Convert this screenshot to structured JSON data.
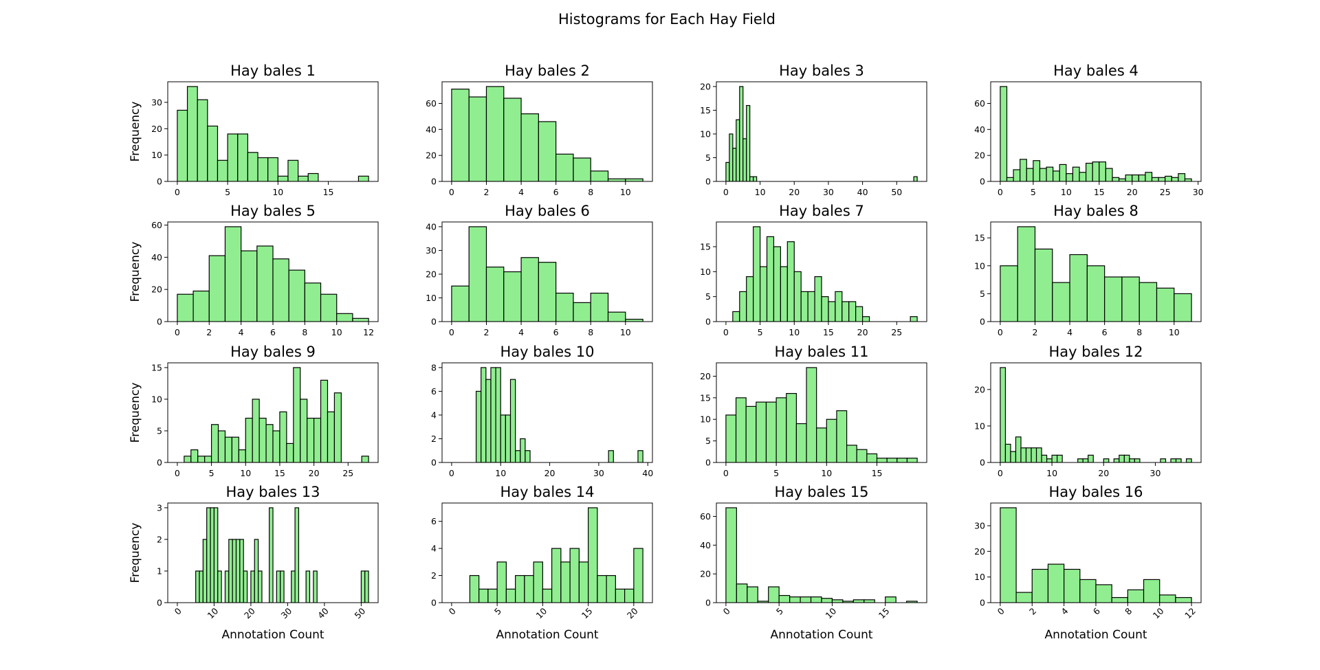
{
  "title": "Histograms for Each Hay Field",
  "chart_data": [
    {
      "type": "histogram",
      "title": "Hay bales 1",
      "ylabel": "Frequency",
      "color": "#90ee90",
      "edgecolor": "#000000",
      "bins": [
        0,
        1,
        2,
        3,
        4,
        5,
        6,
        7,
        8,
        9,
        10,
        11,
        12,
        13,
        14,
        15,
        16,
        17,
        18,
        19
      ],
      "values": [
        27,
        36,
        31,
        21,
        8,
        18,
        18,
        11,
        9,
        9,
        2,
        8,
        2,
        3,
        0,
        0,
        0,
        0,
        2
      ],
      "xlim": [
        -0.95,
        19.95
      ],
      "xticks": [
        0,
        5,
        10,
        15
      ],
      "ylim": [
        0,
        37.8
      ],
      "yticks": [
        0,
        10,
        20,
        30
      ]
    },
    {
      "type": "histogram",
      "title": "Hay bales 2",
      "color": "#90ee90",
      "edgecolor": "#000000",
      "bins": [
        0,
        1,
        2,
        3,
        4,
        5,
        6,
        7,
        8,
        9,
        10,
        11
      ],
      "values": [
        71,
        65,
        73,
        64,
        52,
        46,
        21,
        18,
        8,
        2,
        2
      ],
      "xlim": [
        -0.55,
        11.55
      ],
      "xticks": [
        0,
        2,
        4,
        6,
        8,
        10
      ],
      "ylim": [
        0,
        76.65
      ],
      "yticks": [
        0,
        20,
        40,
        60
      ]
    },
    {
      "type": "histogram",
      "title": "Hay bales 3",
      "color": "#90ee90",
      "edgecolor": "#000000",
      "bins": [
        0,
        1,
        2,
        3,
        4,
        5,
        6,
        7,
        8,
        9,
        10,
        11,
        12,
        13,
        14,
        15,
        16,
        17,
        18,
        19,
        20,
        21,
        22,
        23,
        24,
        25,
        26,
        27,
        28,
        29,
        30,
        31,
        32,
        33,
        34,
        35,
        36,
        37,
        38,
        39,
        40,
        41,
        42,
        43,
        44,
        45,
        46,
        47,
        48,
        49,
        50,
        51,
        52,
        53,
        54,
        55,
        56
      ],
      "values": [
        4,
        10,
        7,
        13,
        20,
        9,
        16,
        1,
        1,
        0,
        0,
        0,
        0,
        0,
        0,
        0,
        0,
        0,
        0,
        0,
        0,
        0,
        0,
        0,
        0,
        0,
        0,
        0,
        0,
        0,
        0,
        0,
        0,
        0,
        0,
        0,
        0,
        0,
        0,
        0,
        0,
        0,
        0,
        0,
        0,
        0,
        0,
        0,
        0,
        0,
        0,
        0,
        0,
        0,
        0,
        1
      ],
      "xlim": [
        -2.8,
        58.8
      ],
      "xticks": [
        0,
        10,
        20,
        30,
        40,
        50
      ],
      "ylim": [
        0,
        21
      ],
      "yticks": [
        0,
        5,
        10,
        15,
        20
      ]
    },
    {
      "type": "histogram",
      "title": "Hay bales 4",
      "color": "#90ee90",
      "edgecolor": "#000000",
      "bins": [
        0,
        1,
        2,
        3,
        4,
        5,
        6,
        7,
        8,
        9,
        10,
        11,
        12,
        13,
        14,
        15,
        16,
        17,
        18,
        19,
        20,
        21,
        22,
        23,
        24,
        25,
        26,
        27,
        28,
        29
      ],
      "values": [
        73,
        3,
        9,
        17,
        10,
        16,
        10,
        11,
        8,
        13,
        6,
        11,
        7,
        14,
        15,
        15,
        10,
        3,
        2,
        5,
        5,
        5,
        7,
        3,
        3,
        4,
        3,
        6,
        2
      ],
      "xlim": [
        -1.45,
        30.45
      ],
      "xticks": [
        0,
        5,
        10,
        15,
        20,
        25,
        30
      ],
      "ylim": [
        0,
        76.65
      ],
      "yticks": [
        0,
        20,
        40,
        60
      ]
    },
    {
      "type": "histogram",
      "title": "Hay bales 5",
      "ylabel": "Frequency",
      "color": "#90ee90",
      "edgecolor": "#000000",
      "bins": [
        0,
        1,
        2,
        3,
        4,
        5,
        6,
        7,
        8,
        9,
        10,
        11,
        12
      ],
      "values": [
        17,
        19,
        41,
        59,
        44,
        47,
        39,
        32,
        24,
        17,
        5,
        2
      ],
      "xlim": [
        -0.6,
        12.6
      ],
      "xticks": [
        0,
        2,
        4,
        6,
        8,
        10,
        12
      ],
      "ylim": [
        0,
        61.95
      ],
      "yticks": [
        0,
        20,
        40,
        60
      ]
    },
    {
      "type": "histogram",
      "title": "Hay bales 6",
      "color": "#90ee90",
      "edgecolor": "#000000",
      "bins": [
        0,
        1,
        2,
        3,
        4,
        5,
        6,
        7,
        8,
        9,
        10,
        11
      ],
      "values": [
        15,
        40,
        23,
        21,
        27,
        25,
        12,
        8,
        12,
        4,
        1
      ],
      "xlim": [
        -0.55,
        11.55
      ],
      "xticks": [
        0,
        2,
        4,
        6,
        8,
        10
      ],
      "ylim": [
        0,
        42
      ],
      "yticks": [
        0,
        10,
        20,
        30,
        40
      ]
    },
    {
      "type": "histogram",
      "title": "Hay bales 7",
      "color": "#90ee90",
      "edgecolor": "#000000",
      "bins": [
        0,
        1,
        2,
        3,
        4,
        5,
        6,
        7,
        8,
        9,
        10,
        11,
        12,
        13,
        14,
        15,
        16,
        17,
        18,
        19,
        20,
        21,
        22,
        23,
        24,
        25,
        26,
        27,
        28
      ],
      "values": [
        0,
        2,
        6,
        9,
        19,
        11,
        17,
        15,
        11,
        16,
        10,
        6,
        6,
        9,
        5,
        4,
        6,
        4,
        4,
        3,
        1,
        0,
        0,
        0,
        0,
        0,
        0,
        1
      ],
      "xlim": [
        -1.4,
        29.4
      ],
      "xticks": [
        0,
        5,
        10,
        15,
        20,
        25
      ],
      "ylim": [
        0,
        19.95
      ],
      "yticks": [
        0,
        5,
        10,
        15
      ]
    },
    {
      "type": "histogram",
      "title": "Hay bales 8",
      "color": "#90ee90",
      "edgecolor": "#000000",
      "bins": [
        0,
        1,
        2,
        3,
        4,
        5,
        6,
        7,
        8,
        9,
        10,
        11
      ],
      "values": [
        10,
        17,
        13,
        7,
        12,
        10,
        8,
        8,
        7,
        6,
        5
      ],
      "xlim": [
        -0.55,
        11.55
      ],
      "xticks": [
        0,
        2,
        4,
        6,
        8,
        10
      ],
      "ylim": [
        0,
        17.85
      ],
      "yticks": [
        0,
        5,
        10,
        15
      ]
    },
    {
      "type": "histogram",
      "title": "Hay bales 9",
      "ylabel": "Frequency",
      "color": "#90ee90",
      "edgecolor": "#000000",
      "bins": [
        0,
        1,
        2,
        3,
        4,
        5,
        6,
        7,
        8,
        9,
        10,
        11,
        12,
        13,
        14,
        15,
        16,
        17,
        18,
        19,
        20,
        21,
        22,
        23,
        24,
        25,
        26,
        27,
        28
      ],
      "values": [
        0,
        1,
        2,
        1,
        1,
        6,
        5,
        4,
        4,
        2,
        7,
        10,
        7,
        6,
        5,
        8,
        3,
        15,
        10,
        7,
        7,
        13,
        8,
        11,
        0,
        0,
        0,
        1
      ],
      "xlim": [
        -1.4,
        29.4
      ],
      "xticks": [
        0,
        5,
        10,
        15,
        20,
        25
      ],
      "ylim": [
        0,
        15.75
      ],
      "yticks": [
        0,
        5,
        10,
        15
      ]
    },
    {
      "type": "histogram",
      "title": "Hay bales 10",
      "color": "#90ee90",
      "edgecolor": "#000000",
      "bins": [
        0,
        1,
        2,
        3,
        4,
        5,
        6,
        7,
        8,
        9,
        10,
        11,
        12,
        13,
        14,
        15,
        16,
        17,
        18,
        19,
        20,
        21,
        22,
        23,
        24,
        25,
        26,
        27,
        28,
        29,
        30,
        31,
        32,
        33,
        34,
        35,
        36,
        37,
        38,
        39
      ],
      "values": [
        0,
        0,
        0,
        0,
        0,
        6,
        8,
        7,
        8,
        8,
        4,
        4,
        7,
        1,
        2,
        1,
        0,
        0,
        0,
        0,
        0,
        0,
        0,
        0,
        0,
        0,
        0,
        0,
        0,
        0,
        0,
        0,
        1,
        0,
        0,
        0,
        0,
        0,
        1
      ],
      "xlim": [
        -1.95,
        40.95
      ],
      "xticks": [
        0,
        10,
        20,
        30,
        40
      ],
      "ylim": [
        0,
        8.4
      ],
      "yticks": [
        0,
        2,
        4,
        6,
        8
      ]
    },
    {
      "type": "histogram",
      "title": "Hay bales 11",
      "color": "#90ee90",
      "edgecolor": "#000000",
      "bins": [
        0,
        1,
        2,
        3,
        4,
        5,
        6,
        7,
        8,
        9,
        10,
        11,
        12,
        13,
        14,
        15,
        16,
        17,
        18,
        19
      ],
      "values": [
        11,
        15,
        13,
        14,
        14,
        15,
        16,
        9,
        22,
        8,
        10,
        12,
        4,
        3,
        2,
        1,
        1,
        1,
        1
      ],
      "xlim": [
        -0.95,
        19.95
      ],
      "xticks": [
        0,
        5,
        10,
        15
      ],
      "ylim": [
        0,
        23.1
      ],
      "yticks": [
        0,
        5,
        10,
        15,
        20
      ]
    },
    {
      "type": "histogram",
      "title": "Hay bales 12",
      "color": "#90ee90",
      "edgecolor": "#000000",
      "bins": [
        0,
        1,
        2,
        3,
        4,
        5,
        6,
        7,
        8,
        9,
        10,
        11,
        12,
        13,
        14,
        15,
        16,
        17,
        18,
        19,
        20,
        21,
        22,
        23,
        24,
        25,
        26,
        27,
        28,
        29,
        30,
        31,
        32,
        33,
        34,
        35,
        36,
        37
      ],
      "values": [
        26,
        5,
        3,
        7,
        4,
        4,
        4,
        4,
        2,
        1,
        2,
        2,
        0,
        0,
        0,
        1,
        1,
        2,
        0,
        0,
        1,
        0,
        1,
        2,
        2,
        1,
        1,
        0,
        0,
        0,
        0,
        1,
        0,
        1,
        1,
        0,
        1
      ],
      "xlim": [
        -1.85,
        38.85
      ],
      "xticks": [
        0,
        10,
        20,
        30
      ],
      "ylim": [
        0,
        27.3
      ],
      "yticks": [
        0,
        10,
        20
      ]
    },
    {
      "type": "histogram",
      "title": "Hay bales 13",
      "ylabel": "Frequency",
      "xlabel": "Annotation Count",
      "xtick_rotation": 45,
      "color": "#90ee90",
      "edgecolor": "#000000",
      "bins": [
        0,
        1,
        2,
        3,
        4,
        5,
        6,
        7,
        8,
        9,
        10,
        11,
        12,
        13,
        14,
        15,
        16,
        17,
        18,
        19,
        20,
        21,
        22,
        23,
        24,
        25,
        26,
        27,
        28,
        29,
        30,
        31,
        32,
        33,
        34,
        35,
        36,
        37,
        38,
        39,
        40,
        41,
        42,
        43,
        44,
        45,
        46,
        47,
        48,
        49,
        50,
        51,
        52
      ],
      "values": [
        0,
        0,
        0,
        0,
        0,
        1,
        1,
        2,
        3,
        3,
        3,
        1,
        0,
        1,
        2,
        2,
        2,
        2,
        1,
        0,
        1,
        2,
        1,
        0,
        0,
        3,
        0,
        1,
        1,
        0,
        0,
        1,
        3,
        0,
        0,
        1,
        0,
        1,
        0,
        0,
        0,
        0,
        0,
        0,
        0,
        0,
        0,
        0,
        0,
        0,
        1,
        1
      ],
      "xlim": [
        -2.6,
        54.6
      ],
      "xticks": [
        0,
        10,
        20,
        30,
        40,
        50
      ],
      "ylim": [
        0,
        3.15
      ],
      "yticks": [
        0,
        1,
        2,
        3
      ]
    },
    {
      "type": "histogram",
      "title": "Hay bales 14",
      "xlabel": "Annotation Count",
      "xtick_rotation": 45,
      "color": "#90ee90",
      "edgecolor": "#000000",
      "bins": [
        0,
        1,
        2,
        3,
        4,
        5,
        6,
        7,
        8,
        9,
        10,
        11,
        12,
        13,
        14,
        15,
        16,
        17,
        18,
        19,
        20,
        21
      ],
      "values": [
        0,
        0,
        2,
        1,
        1,
        3,
        1,
        2,
        2,
        3,
        1,
        4,
        3,
        4,
        3,
        7,
        2,
        2,
        1,
        1,
        4
      ],
      "xlim": [
        -1.05,
        22.05
      ],
      "xticks": [
        0,
        5,
        10,
        15,
        20
      ],
      "ylim": [
        0,
        7.35
      ],
      "yticks": [
        0,
        2,
        4,
        6
      ]
    },
    {
      "type": "histogram",
      "title": "Hay bales 15",
      "xlabel": "Annotation Count",
      "xtick_rotation": 45,
      "color": "#90ee90",
      "edgecolor": "#000000",
      "bins": [
        0,
        1,
        2,
        3,
        4,
        5,
        6,
        7,
        8,
        9,
        10,
        11,
        12,
        13,
        14,
        15,
        16,
        17,
        18
      ],
      "values": [
        66,
        13,
        11,
        1,
        11,
        5,
        4,
        4,
        4,
        3,
        2,
        1,
        2,
        2,
        0,
        4,
        0,
        1
      ],
      "xlim": [
        -0.9,
        18.9
      ],
      "xticks": [
        0,
        5,
        10,
        15
      ],
      "ylim": [
        0,
        69.3
      ],
      "yticks": [
        0,
        20,
        40,
        60
      ]
    },
    {
      "type": "histogram",
      "title": "Hay bales 16",
      "xlabel": "Annotation Count",
      "xtick_rotation": 45,
      "color": "#90ee90",
      "edgecolor": "#000000",
      "bins": [
        0,
        1,
        2,
        3,
        4,
        5,
        6,
        7,
        8,
        9,
        10,
        11,
        12
      ],
      "values": [
        37,
        4,
        13,
        15,
        13,
        9,
        7,
        2,
        5,
        9,
        3,
        2
      ],
      "xlim": [
        -0.6,
        12.6
      ],
      "xticks": [
        0,
        2,
        4,
        6,
        8,
        10,
        12
      ],
      "ylim": [
        0,
        38.85
      ],
      "yticks": [
        0,
        10,
        20,
        30
      ]
    }
  ]
}
